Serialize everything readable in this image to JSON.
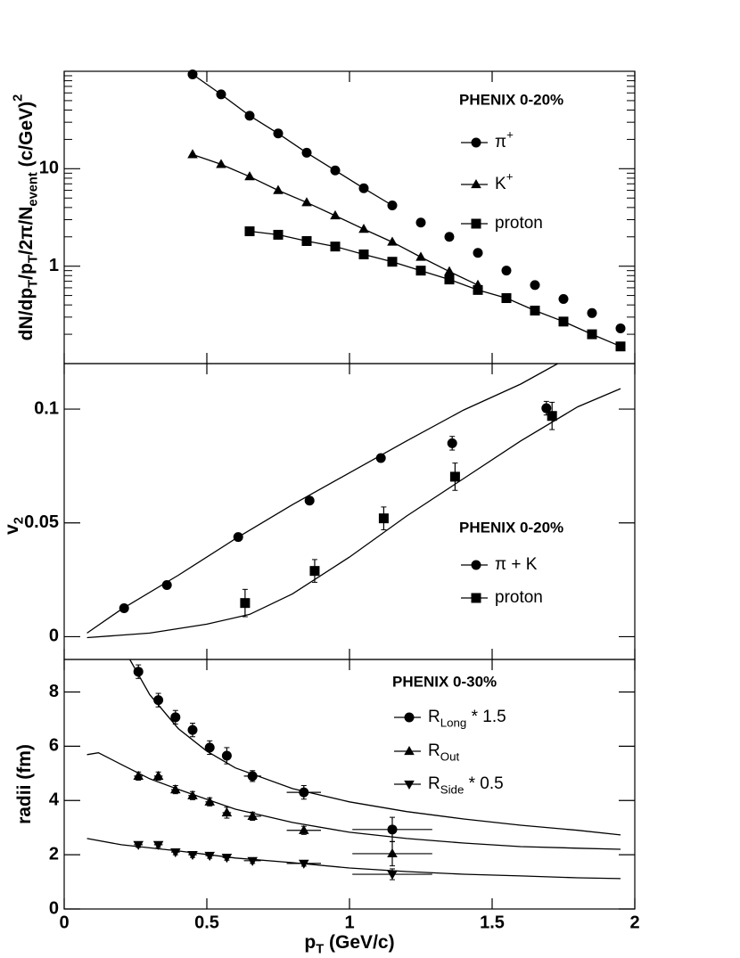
{
  "x_axis": {
    "xlim": [
      0,
      2
    ],
    "xticks": [
      0,
      0.5,
      1,
      1.5,
      2
    ],
    "label": [
      {
        "text": "p"
      },
      {
        "text": "T",
        "pos": "sub"
      },
      {
        "text": " (GeV/c)"
      }
    ]
  },
  "chart_data": [
    {
      "type": "scatter",
      "log_y": true,
      "title": "PHENIX 0-20%",
      "ylabel": [
        {
          "text": "dN/dp"
        },
        {
          "text": "T",
          "pos": "sub"
        },
        {
          "text": "/p"
        },
        {
          "text": "T",
          "pos": "sub"
        },
        {
          "text": "/2π/N"
        },
        {
          "text": "event",
          "pos": "sub"
        },
        {
          "text": " (c/GeV)"
        },
        {
          "text": "2",
          "pos": "sup"
        }
      ],
      "ylim": [
        0.1,
        100
      ],
      "yticks": [
        1,
        10
      ],
      "yminor_ticks": [
        0.2,
        0.3,
        0.4,
        0.5,
        0.6,
        0.7,
        0.8,
        0.9,
        2,
        3,
        4,
        5,
        6,
        7,
        8,
        9,
        20,
        30,
        40,
        50,
        60,
        70,
        80,
        90
      ],
      "series": [
        {
          "name": [
            {
              "text": "π"
            },
            {
              "text": "+",
              "pos": "sup"
            }
          ],
          "marker": "circle",
          "color": "#000000",
          "x": [
            0.45,
            0.55,
            0.65,
            0.75,
            0.85,
            0.95,
            1.05,
            1.15,
            1.25,
            1.35,
            1.45,
            1.55,
            1.65,
            1.75,
            1.85,
            1.95
          ],
          "values": [
            93,
            58,
            35,
            23,
            14.6,
            9.6,
            6.3,
            4.2,
            2.8,
            2.0,
            1.37,
            0.9,
            0.64,
            0.46,
            0.33,
            0.23
          ],
          "fit": {
            "x": [
              0.45,
              0.55,
              0.65,
              0.75,
              0.85,
              0.95,
              1.05,
              1.15
            ],
            "values": [
              93,
              58,
              35,
              23,
              14.6,
              9.6,
              6.3,
              4.2
            ]
          }
        },
        {
          "name": [
            {
              "text": "K"
            },
            {
              "text": "+",
              "pos": "sup"
            }
          ],
          "marker": "triangle-up",
          "color": "#000000",
          "x": [
            0.45,
            0.55,
            0.65,
            0.75,
            0.85,
            0.95,
            1.05,
            1.15,
            1.25,
            1.35,
            1.45
          ],
          "values": [
            14,
            11.1,
            8.3,
            6.0,
            4.5,
            3.3,
            2.4,
            1.77,
            1.24,
            0.88,
            0.64
          ],
          "fit": {
            "x": [
              0.45,
              0.55,
              0.65,
              0.75,
              0.85,
              0.95,
              1.05,
              1.15,
              1.25,
              1.35,
              1.45
            ],
            "values": [
              14,
              11.1,
              8.3,
              6.0,
              4.5,
              3.3,
              2.4,
              1.77,
              1.24,
              0.88,
              0.64
            ]
          }
        },
        {
          "name": [
            {
              "text": "proton"
            }
          ],
          "marker": "square",
          "color": "#000000",
          "x": [
            0.65,
            0.75,
            0.85,
            0.95,
            1.05,
            1.15,
            1.25,
            1.35,
            1.45,
            1.55,
            1.65,
            1.75,
            1.85,
            1.95
          ],
          "values": [
            2.28,
            2.1,
            1.81,
            1.59,
            1.32,
            1.11,
            0.9,
            0.73,
            0.57,
            0.47,
            0.35,
            0.27,
            0.2,
            0.15
          ],
          "fit": {
            "x": [
              0.65,
              0.75,
              0.85,
              0.95,
              1.05,
              1.15,
              1.25,
              1.35,
              1.45,
              1.55,
              1.65,
              1.75,
              1.85,
              1.95
            ],
            "values": [
              2.28,
              2.1,
              1.81,
              1.59,
              1.32,
              1.11,
              0.9,
              0.73,
              0.57,
              0.47,
              0.35,
              0.27,
              0.2,
              0.15
            ]
          }
        }
      ]
    },
    {
      "type": "scatter",
      "title": "PHENIX 0-20%",
      "ylabel": [
        {
          "text": "v"
        },
        {
          "text": "2",
          "pos": "sub"
        }
      ],
      "ylim": [
        -0.01,
        0.12
      ],
      "yticks": [
        0,
        0.05,
        0.1
      ],
      "series": [
        {
          "name": [
            {
              "text": "π + K"
            }
          ],
          "marker": "circle",
          "color": "#000000",
          "x": [
            0.21,
            0.36,
            0.61,
            0.86,
            1.11,
            1.36,
            1.69
          ],
          "values": [
            0.0125,
            0.0227,
            0.0438,
            0.0598,
            0.0785,
            0.085,
            0.1004
          ],
          "yerr": [
            0.001,
            0.001,
            0.001,
            0.001,
            0.001,
            0.003,
            0.003
          ],
          "fit": {
            "x": [
              0.08,
              0.2,
              0.4,
              0.6,
              0.8,
              1.0,
              1.2,
              1.4,
              1.6,
              1.73
            ],
            "values": [
              0.0016,
              0.012,
              0.027,
              0.043,
              0.058,
              0.072,
              0.086,
              0.0996,
              0.111,
              0.12
            ]
          }
        },
        {
          "name": [
            {
              "text": "proton"
            }
          ],
          "marker": "square",
          "color": "#000000",
          "x": [
            0.634,
            0.878,
            1.12,
            1.37,
            1.71
          ],
          "values": [
            0.0148,
            0.0289,
            0.052,
            0.0703,
            0.097
          ],
          "yerr": [
            0.006,
            0.005,
            0.005,
            0.006,
            0.006
          ],
          "fit": {
            "x": [
              0.08,
              0.3,
              0.5,
              0.65,
              0.8,
              1.0,
              1.2,
              1.4,
              1.6,
              1.8,
              1.95
            ],
            "values": [
              -0.0004,
              0.0016,
              0.0055,
              0.0098,
              0.0188,
              0.035,
              0.053,
              0.0695,
              0.086,
              0.101,
              0.109
            ]
          }
        }
      ]
    },
    {
      "type": "scatter",
      "title": "PHENIX 0-30%",
      "ylabel": [
        {
          "text": "radii (fm)"
        }
      ],
      "ylim": [
        0,
        9.2
      ],
      "yticks": [
        0,
        2,
        4,
        6,
        8
      ],
      "series": [
        {
          "name": [
            {
              "text": "R"
            },
            {
              "text": "Long",
              "pos": "sub"
            },
            {
              "text": " * 1.5"
            }
          ],
          "marker": "circle",
          "color": "#000000",
          "x": [
            0.26,
            0.33,
            0.39,
            0.45,
            0.51,
            0.57,
            0.66,
            0.84,
            1.15
          ],
          "values": [
            8.75,
            7.7,
            7.07,
            6.6,
            5.95,
            5.65,
            4.9,
            4.3,
            2.93
          ],
          "yerr": [
            0.25,
            0.25,
            0.25,
            0.25,
            0.25,
            0.3,
            0.2,
            0.25,
            0.45
          ],
          "xerr": [
            0.015,
            0.015,
            0.015,
            0.015,
            0.015,
            0.015,
            0.03,
            0.06,
            0.14
          ],
          "fit": {
            "x": [
              0.23,
              0.3,
              0.4,
              0.5,
              0.6,
              0.8,
              1.0,
              1.2,
              1.4,
              1.6,
              1.8,
              1.95
            ],
            "values": [
              9.2,
              7.9,
              6.65,
              5.82,
              5.2,
              4.44,
              3.95,
              3.59,
              3.32,
              3.09,
              2.9,
              2.73
            ]
          }
        },
        {
          "name": [
            {
              "text": "R"
            },
            {
              "text": "Out",
              "pos": "sub"
            }
          ],
          "marker": "triangle-up",
          "color": "#000000",
          "x": [
            0.26,
            0.33,
            0.39,
            0.45,
            0.51,
            0.57,
            0.66,
            0.84,
            1.15
          ],
          "values": [
            4.9,
            4.9,
            4.4,
            4.18,
            3.95,
            3.55,
            3.42,
            2.9,
            2.04
          ],
          "yerr": [
            0.15,
            0.15,
            0.15,
            0.15,
            0.15,
            0.2,
            0.15,
            0.15,
            0.45
          ],
          "xerr": [
            0.015,
            0.015,
            0.015,
            0.015,
            0.015,
            0.015,
            0.03,
            0.06,
            0.14
          ],
          "fit": {
            "x": [
              0.08,
              0.12,
              0.2,
              0.3,
              0.4,
              0.6,
              0.8,
              1.0,
              1.2,
              1.4,
              1.6,
              1.8,
              1.95
            ],
            "values": [
              5.69,
              5.76,
              5.33,
              4.8,
              4.41,
              3.68,
              3.19,
              2.83,
              2.6,
              2.43,
              2.3,
              2.24,
              2.2
            ]
          }
        },
        {
          "name": [
            {
              "text": "R"
            },
            {
              "text": "Side",
              "pos": "sub"
            },
            {
              "text": " * 0.5"
            }
          ],
          "marker": "triangle-down",
          "color": "#000000",
          "x": [
            0.26,
            0.33,
            0.39,
            0.45,
            0.51,
            0.57,
            0.66,
            0.84,
            1.15
          ],
          "values": [
            2.37,
            2.37,
            2.1,
            2.0,
            1.97,
            1.9,
            1.78,
            1.68,
            1.28
          ],
          "yerr": [
            0.1,
            0.1,
            0.1,
            0.1,
            0.1,
            0.1,
            0.1,
            0.1,
            0.2
          ],
          "xerr": [
            0.015,
            0.015,
            0.015,
            0.015,
            0.015,
            0.015,
            0.03,
            0.06,
            0.14
          ],
          "fit": {
            "x": [
              0.08,
              0.2,
              0.4,
              0.6,
              0.8,
              1.0,
              1.2,
              1.4,
              1.6,
              1.8,
              1.95
            ],
            "values": [
              2.6,
              2.37,
              2.14,
              1.88,
              1.71,
              1.51,
              1.38,
              1.28,
              1.22,
              1.15,
              1.12
            ]
          }
        }
      ]
    }
  ]
}
